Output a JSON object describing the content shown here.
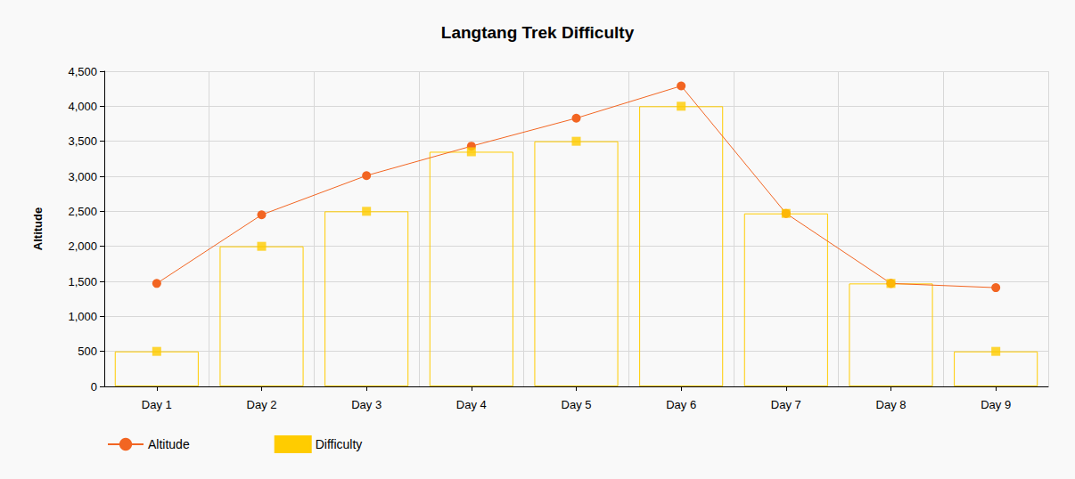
{
  "chart_data": {
    "type": "bar",
    "title": "Langtang Trek Difficulty",
    "y_label": "Altitude",
    "categories": [
      "Day 1",
      "Day 2",
      "Day 3",
      "Day 4",
      "Day 5",
      "Day 6",
      "Day 7",
      "Day 8",
      "Day 9"
    ],
    "series": [
      {
        "name": "Altitude",
        "type": "line",
        "color": "#f26522",
        "marker": "circle",
        "values": [
          1470,
          2450,
          3010,
          3430,
          3830,
          4290,
          2470,
          1470,
          1410
        ]
      },
      {
        "name": "Difficulty",
        "type": "bar",
        "color": "#ffcc00",
        "marker": "square",
        "values": [
          500,
          2000,
          2500,
          3350,
          3500,
          4000,
          2470,
          1470,
          500
        ]
      }
    ],
    "ylim": [
      0,
      4500
    ],
    "yticks": [
      0,
      500,
      {
        "value": 1000,
        "label": "1,000"
      },
      {
        "value": 1500,
        "label": "1,500"
      },
      {
        "value": 2000,
        "label": "2,000"
      },
      {
        "value": 2500,
        "label": "2,500"
      },
      {
        "value": 3000,
        "label": "3,000"
      },
      {
        "value": 3500,
        "label": "3,500"
      },
      {
        "value": 4000,
        "label": "4,000"
      },
      {
        "value": 4500,
        "label": "4,500"
      }
    ],
    "grid": true,
    "legend": "lower left"
  }
}
